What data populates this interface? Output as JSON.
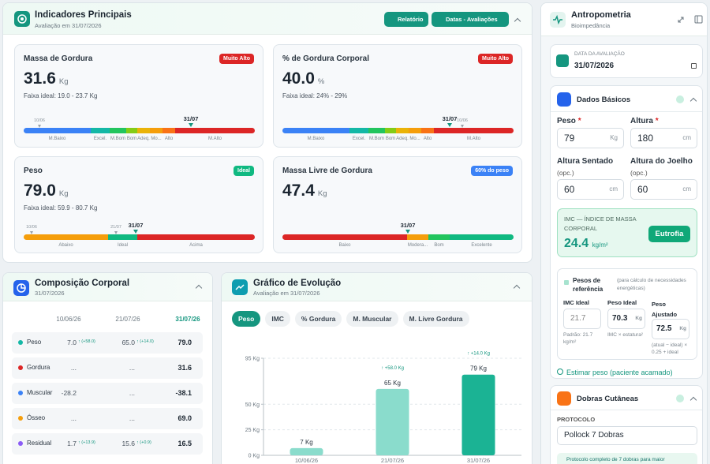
{
  "header": {
    "title": "Indicadores Principais",
    "subtitle": "Avaliação em 31/07/2026",
    "buttons": [
      "Relatório",
      "Datas - Avaliações"
    ]
  },
  "indicators": [
    {
      "title": "Massa de Gordura",
      "badge": "Muito Alto",
      "value": "31.6",
      "unit": "Kg",
      "ideal": "Faixa ideal: 19.0 - 23.7 Kg",
      "markers": [
        "10/06",
        "31/07"
      ],
      "segments": [
        "M.Baixo",
        "Excel.",
        "M.Bom",
        "Bom",
        "Adeq.",
        "Mo...",
        "Alto",
        "M.Alto"
      ]
    },
    {
      "title": "% de Gordura Corporal",
      "badge": "Muito Alto",
      "value": "40.0",
      "unit": "%",
      "ideal": "Faixa ideal: 24% - 29%",
      "markers": [
        "31/07",
        "10/06"
      ],
      "segments": [
        "M.Baixo",
        "Excel.",
        "M.Bom",
        "Bom",
        "Adeq.",
        "Mo...",
        "Alto",
        "M.Alto"
      ]
    },
    {
      "title": "Peso",
      "badge": "Ideal",
      "value": "79.0",
      "unit": "Kg",
      "ideal": "Faixa ideal: 59.9 - 80.7 Kg",
      "markers": [
        "10/06",
        "21/07",
        "31/07"
      ],
      "segments": [
        "Abaixo",
        "Ideal",
        "Acima"
      ]
    },
    {
      "title": "Massa Livre de Gordura",
      "badge": "60% do peso",
      "value": "47.4",
      "unit": "Kg",
      "markers": [
        "31/07"
      ],
      "segments": [
        "Baixo",
        "Modera...",
        "Bom",
        "Excelente"
      ]
    }
  ],
  "composition": {
    "title": "Composição Corporal",
    "date": "31/07/2026",
    "columns": [
      "10/06/26",
      "21/07/26",
      "31/07/26"
    ],
    "rows": [
      {
        "name": "Peso",
        "c1": "7.0",
        "d1": "↑ (+58.0)",
        "c2": "65.0",
        "d2": "↑ (+14.0)",
        "c3": "79.0"
      },
      {
        "name": "Gordura",
        "c1": "...",
        "c2": "...",
        "c3": "31.6"
      },
      {
        "name": "Muscular",
        "c1": "-28.2",
        "c2": "...",
        "c3": "-38.1"
      },
      {
        "name": "Ósseo",
        "c1": "...",
        "c2": "...",
        "c3": "69.0"
      },
      {
        "name": "Residual",
        "c1": "1.7",
        "d1": "↑ (+13.9)",
        "c2": "15.6",
        "d2": "↑ (+0.9)",
        "c3": "16.5"
      }
    ]
  },
  "evolution": {
    "title": "Gráfico de Evolução",
    "subtitle": "Avaliação em 31/07/2026",
    "tabs": [
      "Peso",
      "IMC",
      "% Gordura",
      "M. Muscular",
      "M. Livre Gordura"
    ],
    "chart": {
      "type": "bar",
      "categories": [
        "10/06/26",
        "21/07/26",
        "31/07/26"
      ],
      "values": [
        7,
        65,
        79
      ],
      "value_labels": [
        "7 Kg",
        "65 Kg",
        "79 Kg"
      ],
      "delta_labels": [
        null,
        "↑ +58.0 Kg",
        "↑ +14.0 Kg"
      ],
      "colors": [
        "#8adccc",
        "#8adccc",
        "#1bb394"
      ],
      "ylim": [
        0,
        95
      ],
      "yticks": [
        {
          "value": 0,
          "label": "0 Kg"
        },
        {
          "value": 25,
          "label": "25 Kg"
        },
        {
          "value": 50,
          "label": "50 Kg"
        },
        {
          "value": 95,
          "label": "95 Kg"
        }
      ],
      "grid": true
    }
  },
  "sidebar": {
    "title": "Antropometria",
    "subtitle": "Bioimpedância",
    "date_label": "DATA DA AVALIAÇÃO",
    "date": "31/07/2026",
    "basic": {
      "title": "Dados Básicos",
      "fields": [
        {
          "label": "Peso",
          "required": "*",
          "value": "79",
          "unit": "Kg"
        },
        {
          "label": "Altura",
          "required": "*",
          "value": "180",
          "unit": "cm"
        },
        {
          "label": "Altura Sentado",
          "note": "(opc.)",
          "value": "60",
          "unit": "cm"
        },
        {
          "label": "Altura do Joelho",
          "note": "(opc.)",
          "value": "60",
          "unit": "cm"
        }
      ],
      "bmi": {
        "label": "IMC — ÍNDICE DE MASSA CORPORAL",
        "value": "24.4",
        "unit": "kg/m²",
        "status": "Eutrofia"
      },
      "ref": {
        "title": "Pesos de referência",
        "note": "(para cálculo de necessidades energéticas)",
        "items": [
          {
            "label": "IMC Ideal",
            "value": "21.7",
            "caption": "Padrão: 21.7 kg/m²"
          },
          {
            "label": "Peso Ideal",
            "value": "70.3",
            "unit": "Kg",
            "caption": "IMC × estatura²"
          },
          {
            "label": "Peso Ajustado",
            "value": "72.5",
            "unit": "Kg",
            "caption": "(atual − ideal) × 0.25 + ideal"
          }
        ]
      },
      "estimate": "Estimar peso (paciente acamado)"
    },
    "skinfolds": {
      "title": "Dobras Cutâneas",
      "protocol_label": "PROTOCOLO",
      "protocol": "Pollock 7 Dobras",
      "note": "Protocolo completo de 7 dobras para maior"
    }
  }
}
